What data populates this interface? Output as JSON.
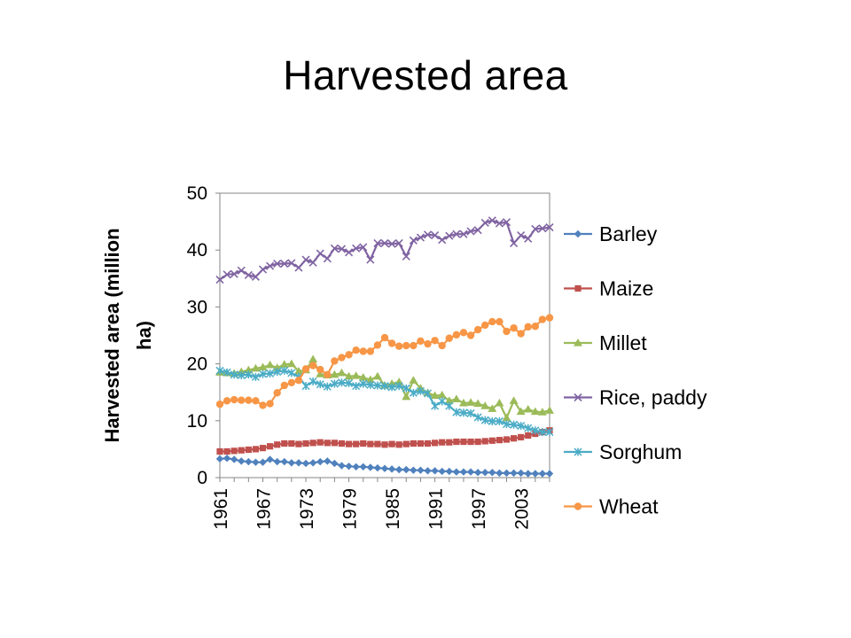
{
  "slide": {
    "title": "Harvested area"
  },
  "chart_data": {
    "type": "line",
    "title": "",
    "xlabel": "",
    "ylabel_lines": [
      "Harvested area (million",
      "ha)"
    ],
    "ylim": [
      0,
      50
    ],
    "yticks": [
      0,
      10,
      20,
      30,
      40,
      50
    ],
    "xrange": [
      1961,
      2007
    ],
    "xtick_labels": [
      "1961",
      "1967",
      "1973",
      "1979",
      "1985",
      "1991",
      "1997",
      "2003"
    ],
    "grid": false,
    "legend_position": "right",
    "x": [
      1961,
      1962,
      1963,
      1964,
      1965,
      1966,
      1967,
      1968,
      1969,
      1970,
      1971,
      1972,
      1973,
      1974,
      1975,
      1976,
      1977,
      1978,
      1979,
      1980,
      1981,
      1982,
      1983,
      1984,
      1985,
      1986,
      1987,
      1988,
      1989,
      1990,
      1991,
      1992,
      1993,
      1994,
      1995,
      1996,
      1997,
      1998,
      1999,
      2000,
      2001,
      2002,
      2003,
      2004,
      2005,
      2006,
      2007
    ],
    "series": [
      {
        "name": "Barley",
        "color": "#4F81BD",
        "marker": "diamond",
        "values": [
          3.3,
          3.4,
          3.2,
          2.9,
          2.8,
          2.7,
          2.7,
          3.2,
          2.8,
          2.8,
          2.6,
          2.6,
          2.5,
          2.6,
          2.8,
          2.9,
          2.5,
          2.1,
          2.0,
          1.9,
          1.9,
          1.8,
          1.7,
          1.6,
          1.5,
          1.4,
          1.4,
          1.3,
          1.3,
          1.2,
          1.2,
          1.1,
          1.1,
          1.0,
          1.0,
          1.0,
          0.9,
          0.9,
          0.9,
          0.8,
          0.8,
          0.8,
          0.8,
          0.7,
          0.7,
          0.7,
          0.7
        ]
      },
      {
        "name": "Maize",
        "color": "#C0504D",
        "marker": "square",
        "values": [
          4.6,
          4.6,
          4.7,
          4.8,
          4.9,
          5.0,
          5.2,
          5.5,
          5.8,
          6.0,
          6.0,
          5.9,
          6.0,
          6.1,
          6.2,
          6.1,
          6.1,
          6.0,
          5.9,
          5.9,
          6.0,
          5.9,
          5.9,
          5.8,
          5.9,
          5.8,
          5.9,
          6.0,
          6.0,
          6.0,
          6.1,
          6.2,
          6.2,
          6.3,
          6.3,
          6.3,
          6.3,
          6.4,
          6.5,
          6.6,
          6.7,
          6.9,
          7.1,
          7.4,
          7.7,
          8.0,
          8.3
        ]
      },
      {
        "name": "Millet",
        "color": "#9BBB59",
        "marker": "triangle",
        "values": [
          18.5,
          18.4,
          18.3,
          18.6,
          18.9,
          19.2,
          19.4,
          19.8,
          19.3,
          19.9,
          20.0,
          18.7,
          18.9,
          20.8,
          18.2,
          18.0,
          18.1,
          18.4,
          17.8,
          17.9,
          17.6,
          17.2,
          17.8,
          16.2,
          16.5,
          16.8,
          14.2,
          17.1,
          15.7,
          14.9,
          14.4,
          14.5,
          13.5,
          13.8,
          13.1,
          13.2,
          13.0,
          12.6,
          12.1,
          13.1,
          10.5,
          13.5,
          11.6,
          12.0,
          11.6,
          11.5,
          11.8
        ]
      },
      {
        "name": "Rice, paddy",
        "color": "#8064A2",
        "marker": "x",
        "values": [
          34.8,
          35.7,
          35.8,
          36.4,
          35.6,
          35.3,
          36.6,
          37.2,
          37.6,
          37.6,
          37.7,
          36.9,
          38.3,
          37.8,
          39.4,
          38.5,
          40.3,
          40.2,
          39.6,
          40.3,
          40.5,
          38.3,
          41.2,
          41.2,
          41.1,
          41.2,
          38.9,
          41.7,
          42.2,
          42.7,
          42.6,
          41.8,
          42.5,
          42.8,
          42.8,
          43.3,
          43.5,
          44.8,
          45.2,
          44.7,
          44.9,
          41.2,
          42.6,
          42.0,
          43.7,
          43.8,
          44.0
        ]
      },
      {
        "name": "Sorghum",
        "color": "#4BACC6",
        "marker": "asterisk",
        "values": [
          18.8,
          18.5,
          18.1,
          18.0,
          18.1,
          17.7,
          18.2,
          18.3,
          18.6,
          18.8,
          18.4,
          17.7,
          16.1,
          16.9,
          16.4,
          16.0,
          16.5,
          16.7,
          16.6,
          16.1,
          16.5,
          16.3,
          16.2,
          16.1,
          15.9,
          16.1,
          15.7,
          14.9,
          15.2,
          14.8,
          12.6,
          13.4,
          12.6,
          11.5,
          11.4,
          11.3,
          10.6,
          10.1,
          9.9,
          9.9,
          9.4,
          9.3,
          9.1,
          8.7,
          8.3,
          8.0,
          8.0
        ]
      },
      {
        "name": "Wheat",
        "color": "#F79646",
        "marker": "circle",
        "values": [
          12.9,
          13.5,
          13.7,
          13.6,
          13.6,
          13.5,
          12.7,
          13.0,
          14.9,
          16.2,
          16.7,
          17.1,
          19.1,
          19.7,
          19.0,
          18.1,
          20.5,
          21.1,
          21.6,
          22.4,
          22.2,
          22.2,
          23.3,
          24.6,
          23.6,
          23.1,
          23.2,
          23.2,
          24.0,
          23.5,
          24.1,
          23.2,
          24.5,
          25.1,
          25.5,
          25.0,
          26.0,
          26.8,
          27.4,
          27.4,
          25.7,
          26.3,
          25.3,
          26.5,
          26.6,
          27.8,
          28.1
        ]
      }
    ]
  }
}
